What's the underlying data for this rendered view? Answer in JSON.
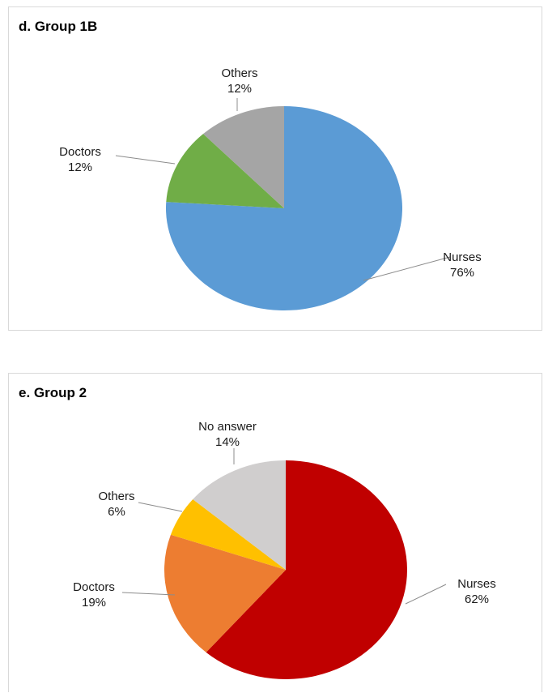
{
  "chart_data": [
    {
      "type": "pie",
      "title": "d. Group 1B",
      "slices": [
        {
          "label": "Nurses",
          "value": 76,
          "value_label": "76%",
          "color": "#5b9bd5"
        },
        {
          "label": "Doctors",
          "value": 12,
          "value_label": "12%",
          "color": "#70ad47"
        },
        {
          "label": "Others",
          "value": 12,
          "value_label": "12%",
          "color": "#a5a5a5"
        }
      ]
    },
    {
      "type": "pie",
      "title": "e. Group 2",
      "slices": [
        {
          "label": "Nurses",
          "value": 62,
          "value_label": "62%",
          "color": "#c00000"
        },
        {
          "label": "Doctors",
          "value": 19,
          "value_label": "19%",
          "color": "#ed7d31"
        },
        {
          "label": "Others",
          "value": 6,
          "value_label": "6%",
          "color": "#ffc000"
        },
        {
          "label": "No answer",
          "value": 14,
          "value_label": "14%",
          "color": "#d0cece"
        }
      ]
    }
  ]
}
